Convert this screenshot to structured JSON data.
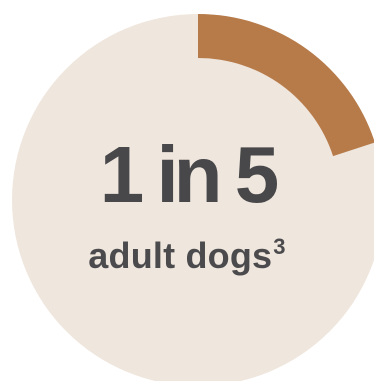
{
  "chart_data": {
    "type": "pie",
    "headline": "1 in 5",
    "subtitle": "adult dogs",
    "footnote": "3",
    "highlight_fraction": 0.2,
    "colors": {
      "background_disc": "#EFE6DD",
      "highlight_arc": "#B77B4A",
      "text": "#4A4A4C"
    }
  }
}
